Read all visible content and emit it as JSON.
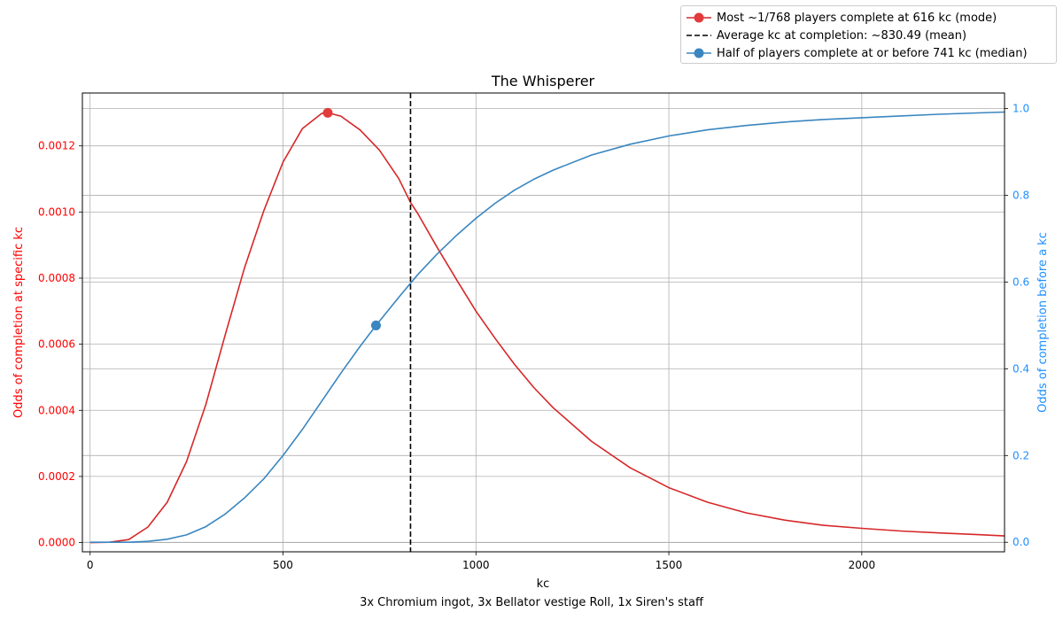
{
  "chart_data": {
    "type": "line",
    "title": "The Whisperer",
    "xlabel": "kc",
    "ylabel_left": "Odds of completion at specific kc",
    "ylabel_right": "Odds of completion before a kc",
    "xlim": [
      -20,
      2370
    ],
    "ylim_left": [
      -2.8e-05,
      0.00136
    ],
    "ylim_right": [
      -0.022,
      1.036
    ],
    "x_ticks": [
      0,
      500,
      1000,
      1500,
      2000
    ],
    "y_ticks_left": [
      "0.0000",
      "0.0002",
      "0.0004",
      "0.0006",
      "0.0008",
      "0.0010",
      "0.0012"
    ],
    "y_ticks_right": [
      "0.0",
      "0.2",
      "0.4",
      "0.6",
      "0.8",
      "1.0"
    ],
    "grid": true,
    "legend_position": "top-right",
    "colors": {
      "pdf": "#d62728",
      "cdf": "#3a86c0",
      "mean": "#000000",
      "left_axis": "#ff0000",
      "right_axis": "#1f8fff"
    },
    "series": [
      {
        "name": "pdf",
        "axis": "left",
        "x": [
          0,
          50,
          100,
          150,
          200,
          250,
          300,
          350,
          400,
          450,
          500,
          550,
          600,
          616,
          650,
          700,
          750,
          800,
          830,
          850,
          900,
          950,
          1000,
          1050,
          1100,
          1150,
          1200,
          1300,
          1400,
          1500,
          1600,
          1700,
          1800,
          1900,
          2000,
          2100,
          2200,
          2300,
          2370
        ],
        "y": [
          0,
          1e-06,
          9e-06,
          4.7e-05,
          0.000122,
          0.000245,
          0.000418,
          0.000628,
          0.00083,
          0.001003,
          0.001151,
          0.001252,
          0.001298,
          0.0013,
          0.00129,
          0.001248,
          0.001187,
          0.001101,
          0.00103,
          0.000994,
          0.000892,
          0.000795,
          0.0007,
          0.000617,
          0.000539,
          0.000469,
          0.000408,
          0.000306,
          0.000226,
          0.000166,
          0.000122,
          9e-05,
          6.8e-05,
          5.2e-05,
          4.3e-05,
          3.5e-05,
          2.9e-05,
          2.4e-05,
          2e-05
        ]
      },
      {
        "name": "cdf",
        "axis": "right",
        "x": [
          0,
          50,
          100,
          150,
          200,
          250,
          300,
          350,
          400,
          450,
          500,
          550,
          600,
          650,
          700,
          741,
          800,
          850,
          900,
          950,
          1000,
          1050,
          1100,
          1150,
          1200,
          1300,
          1400,
          1500,
          1600,
          1700,
          1800,
          1900,
          2000,
          2100,
          2200,
          2300,
          2370
        ],
        "y": [
          0,
          0,
          0,
          0.002,
          0.007,
          0.017,
          0.036,
          0.065,
          0.102,
          0.146,
          0.2,
          0.26,
          0.325,
          0.39,
          0.452,
          0.5,
          0.565,
          0.618,
          0.665,
          0.708,
          0.747,
          0.782,
          0.812,
          0.837,
          0.858,
          0.893,
          0.918,
          0.937,
          0.951,
          0.961,
          0.969,
          0.975,
          0.979,
          0.983,
          0.987,
          0.99,
          0.992
        ]
      }
    ],
    "markers": [
      {
        "name": "mode",
        "axis": "left",
        "x": 616,
        "y": 0.0013
      },
      {
        "name": "median",
        "axis": "right",
        "x": 741,
        "y": 0.5
      }
    ],
    "vline": {
      "name": "mean",
      "x": 830.49
    },
    "legend": [
      "Most ~1/768 players complete at 616 kc (mode)",
      "Average kc at completion: ~830.49 (mean)",
      "Half of players complete at or before 741 kc (median)"
    ],
    "footer": "3x Chromium ingot, 3x Bellator vestige Roll, 1x Siren's staff"
  }
}
